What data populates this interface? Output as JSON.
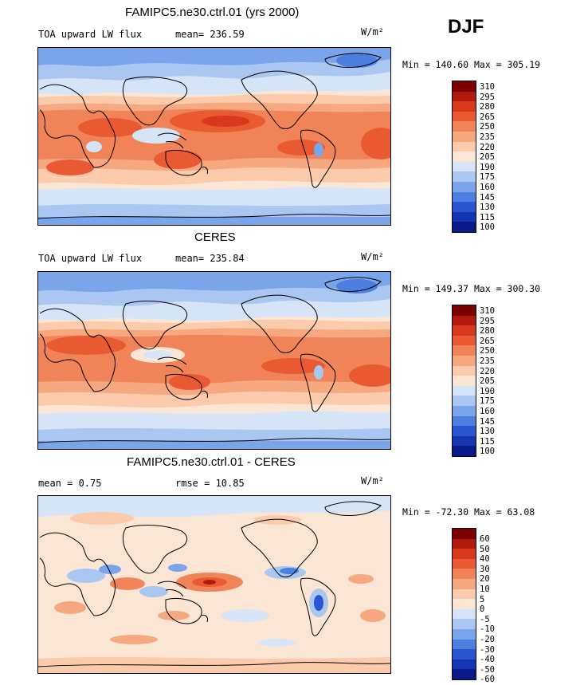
{
  "season": "DJF",
  "panels": [
    {
      "title": "FAMIPC5.ne30.ctrl.01 (yrs 2000)",
      "variable": "TOA upward LW flux",
      "stat": "mean= 236.59",
      "units": "W/m²",
      "minmax": "Min = 140.60 Max = 305.19",
      "colorbar_labels": [
        "310",
        "295",
        "280",
        "265",
        "250",
        "235",
        "220",
        "205",
        "190",
        "175",
        "160",
        "145",
        "130",
        "115",
        "100"
      ]
    },
    {
      "title": "CERES",
      "variable": "TOA upward LW flux",
      "stat": "mean= 235.84",
      "units": "W/m²",
      "minmax": "Min = 149.37 Max = 300.30",
      "colorbar_labels": [
        "310",
        "295",
        "280",
        "265",
        "250",
        "235",
        "220",
        "205",
        "190",
        "175",
        "160",
        "145",
        "130",
        "115",
        "100"
      ]
    },
    {
      "title": "FAMIPC5.ne30.ctrl.01 - CERES",
      "mean": "mean =   0.75",
      "rmse": "rmse =  10.85",
      "units": "W/m²",
      "minmax": "Min = -72.30 Max =  63.08",
      "colorbar_labels": [
        "60",
        "50",
        "40",
        "30",
        "20",
        "10",
        "5",
        "0",
        "-5",
        "-10",
        "-20",
        "-30",
        "-40",
        "-50",
        "-60"
      ]
    }
  ],
  "colors": {
    "scale": [
      "#7b0000",
      "#b01a0c",
      "#d8381e",
      "#ea5a32",
      "#f08458",
      "#f6a880",
      "#fbcbab",
      "#fbe6d6",
      "#d6e4f7",
      "#a9c7f0",
      "#7aa5ea",
      "#4c7fe0",
      "#2a56d1",
      "#1434b0",
      "#0a1a88"
    ]
  }
}
